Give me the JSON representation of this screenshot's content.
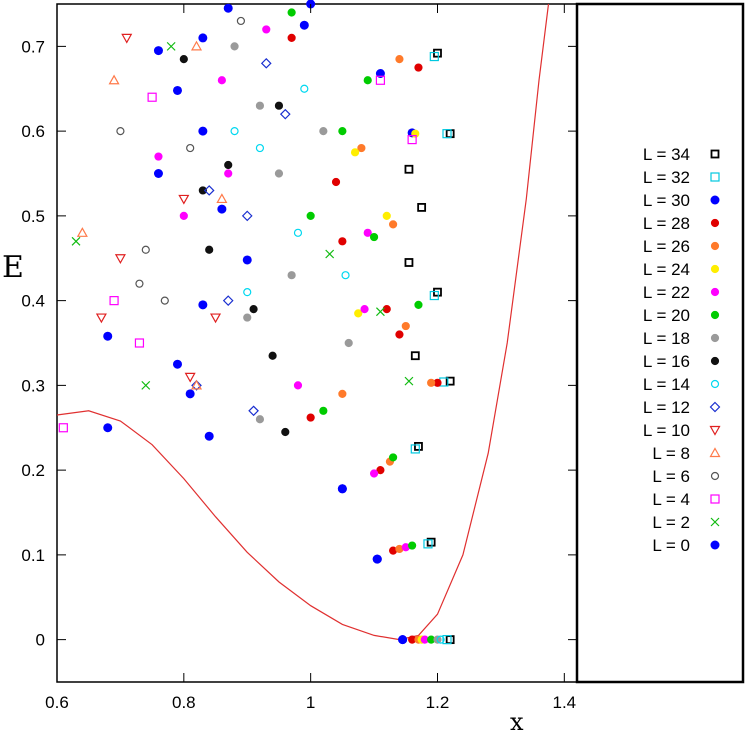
{
  "chart_data": {
    "type": "scatter",
    "xlabel": "x",
    "ylabel": "E",
    "xlim": [
      0.6,
      1.42
    ],
    "ylim": [
      -0.05,
      0.75
    ],
    "x_ticks": [
      {
        "v": 0.6,
        "label": "0.6"
      },
      {
        "v": 0.8,
        "label": "0.8"
      },
      {
        "v": 1.0,
        "label": "1"
      },
      {
        "v": 1.2,
        "label": "1.2"
      },
      {
        "v": 1.4,
        "label": "1.4"
      }
    ],
    "y_ticks": [
      {
        "v": 0,
        "label": "0"
      },
      {
        "v": 0.1,
        "label": "0.1"
      },
      {
        "v": 0.2,
        "label": "0.2"
      },
      {
        "v": 0.3,
        "label": "0.3"
      },
      {
        "v": 0.4,
        "label": "0.4"
      },
      {
        "v": 0.5,
        "label": "0.5"
      },
      {
        "v": 0.6,
        "label": "0.6"
      },
      {
        "v": 0.7,
        "label": "0.7"
      }
    ],
    "legend_position": "right",
    "series": [
      {
        "name": "L = 34",
        "marker": "square-dot",
        "color": "#000000",
        "points": [
          [
            1.22,
            0
          ],
          [
            1.19,
            0.115
          ],
          [
            1.17,
            0.228
          ],
          [
            1.165,
            0.335
          ],
          [
            1.22,
            0.305
          ],
          [
            1.2,
            0.41
          ],
          [
            1.155,
            0.445
          ],
          [
            1.175,
            0.51
          ],
          [
            1.155,
            0.555
          ],
          [
            1.22,
            0.597
          ],
          [
            1.2,
            0.692
          ]
        ]
      },
      {
        "name": "L = 32",
        "marker": "square",
        "color": "#00c8e0",
        "points": [
          [
            1.215,
            0
          ],
          [
            1.185,
            0.113
          ],
          [
            1.165,
            0.225
          ],
          [
            1.21,
            0.304
          ],
          [
            1.195,
            0.406
          ],
          [
            1.215,
            0.597
          ],
          [
            1.195,
            0.688
          ]
        ]
      },
      {
        "name": "L = 30",
        "marker": "circle-filled",
        "color": "#0000ff",
        "points": [
          [
            1.145,
            0
          ],
          [
            1.105,
            0.095
          ],
          [
            1.05,
            0.178
          ],
          [
            0.84,
            0.24
          ],
          [
            0.68,
            0.25
          ],
          [
            0.81,
            0.29
          ],
          [
            0.79,
            0.325
          ],
          [
            0.68,
            0.358
          ],
          [
            0.83,
            0.395
          ],
          [
            0.9,
            0.448
          ],
          [
            0.86,
            0.508
          ],
          [
            0.76,
            0.55
          ],
          [
            0.83,
            0.6
          ],
          [
            0.79,
            0.648
          ],
          [
            1.11,
            0.668
          ],
          [
            0.76,
            0.695
          ],
          [
            1.16,
            0.598
          ],
          [
            0.83,
            0.71
          ],
          [
            0.99,
            0.725
          ],
          [
            0.87,
            0.745
          ],
          [
            1.0,
            0.75
          ]
        ]
      },
      {
        "name": "L = 28",
        "marker": "circle-half",
        "color": "#e00000",
        "points": [
          [
            1.16,
            0
          ],
          [
            1.13,
            0.105
          ],
          [
            1.11,
            0.2
          ],
          [
            1.0,
            0.262
          ],
          [
            1.14,
            0.36
          ],
          [
            1.12,
            0.39
          ],
          [
            1.2,
            0.303
          ],
          [
            1.05,
            0.47
          ],
          [
            1.17,
            0.675
          ],
          [
            1.04,
            0.54
          ],
          [
            0.97,
            0.71
          ]
        ]
      },
      {
        "name": "L = 26",
        "marker": "circle-half",
        "color": "#ff7a2a",
        "points": [
          [
            1.17,
            0
          ],
          [
            1.14,
            0.107
          ],
          [
            1.125,
            0.21
          ],
          [
            1.05,
            0.29
          ],
          [
            1.15,
            0.37
          ],
          [
            1.19,
            0.303
          ],
          [
            1.13,
            0.49
          ],
          [
            1.08,
            0.58
          ],
          [
            1.14,
            0.685
          ]
        ]
      },
      {
        "name": "L = 24",
        "marker": "circle-half",
        "color": "#ffee00",
        "points": [
          [
            1.175,
            0
          ],
          [
            1.075,
            0.385
          ],
          [
            1.12,
            0.5
          ],
          [
            1.07,
            0.575
          ],
          [
            1.165,
            0.597
          ]
        ]
      },
      {
        "name": "L = 22",
        "marker": "circle-half",
        "color": "#ff00ff",
        "points": [
          [
            1.18,
            0
          ],
          [
            1.15,
            0.109
          ],
          [
            1.1,
            0.196
          ],
          [
            0.98,
            0.3
          ],
          [
            1.085,
            0.39
          ],
          [
            1.09,
            0.48
          ],
          [
            0.8,
            0.5
          ],
          [
            0.87,
            0.55
          ],
          [
            0.86,
            0.66
          ],
          [
            0.76,
            0.57
          ],
          [
            0.93,
            0.72
          ]
        ]
      },
      {
        "name": "L = 20",
        "marker": "circle-half",
        "color": "#00cc00",
        "points": [
          [
            1.19,
            0
          ],
          [
            1.16,
            0.111
          ],
          [
            1.13,
            0.215
          ],
          [
            1.02,
            0.27
          ],
          [
            1.17,
            0.395
          ],
          [
            1.1,
            0.475
          ],
          [
            1.0,
            0.5
          ],
          [
            1.05,
            0.6
          ],
          [
            1.09,
            0.66
          ],
          [
            0.97,
            0.74
          ]
        ]
      },
      {
        "name": "L = 18",
        "marker": "circle-half",
        "color": "#9a9a9a",
        "points": [
          [
            1.2,
            0
          ],
          [
            0.92,
            0.26
          ],
          [
            1.06,
            0.35
          ],
          [
            0.9,
            0.38
          ],
          [
            0.97,
            0.43
          ],
          [
            0.95,
            0.55
          ],
          [
            1.02,
            0.6
          ],
          [
            0.92,
            0.63
          ],
          [
            0.88,
            0.7
          ]
        ]
      },
      {
        "name": "L = 16",
        "marker": "circle-half",
        "color": "#111111",
        "points": [
          [
            0.96,
            0.245
          ],
          [
            0.94,
            0.335
          ],
          [
            0.91,
            0.39
          ],
          [
            0.84,
            0.46
          ],
          [
            0.83,
            0.53
          ],
          [
            0.87,
            0.56
          ],
          [
            0.95,
            0.63
          ],
          [
            0.8,
            0.685
          ]
        ]
      },
      {
        "name": "L = 14",
        "marker": "circle",
        "color": "#00d8f0",
        "points": [
          [
            1.205,
            0
          ],
          [
            1.055,
            0.43
          ],
          [
            0.98,
            0.48
          ],
          [
            0.9,
            0.41
          ],
          [
            0.92,
            0.58
          ],
          [
            0.99,
            0.65
          ],
          [
            0.88,
            0.6
          ]
        ]
      },
      {
        "name": "L = 12",
        "marker": "diamond",
        "color": "#1a2fd0",
        "points": [
          [
            0.91,
            0.27
          ],
          [
            0.82,
            0.3
          ],
          [
            0.87,
            0.4
          ],
          [
            0.84,
            0.53
          ],
          [
            0.9,
            0.5
          ],
          [
            0.96,
            0.62
          ],
          [
            0.93,
            0.68
          ]
        ]
      },
      {
        "name": "L = 10",
        "marker": "triangle-down",
        "color": "#e02020",
        "points": [
          [
            0.7,
            0.45
          ],
          [
            0.67,
            0.38
          ],
          [
            0.71,
            0.71
          ],
          [
            0.81,
            0.31
          ],
          [
            0.85,
            0.38
          ],
          [
            0.8,
            0.52
          ]
        ]
      },
      {
        "name": "L = 8",
        "marker": "triangle-up",
        "color": "#ff7a4a",
        "points": [
          [
            0.64,
            0.48
          ],
          [
            0.82,
            0.3
          ],
          [
            0.69,
            0.66
          ],
          [
            0.86,
            0.52
          ],
          [
            0.82,
            0.7
          ]
        ]
      },
      {
        "name": "L = 6",
        "marker": "circle",
        "color": "#555555",
        "points": [
          [
            0.74,
            0.46
          ],
          [
            0.77,
            0.4
          ],
          [
            0.7,
            0.6
          ],
          [
            0.73,
            0.42
          ],
          [
            0.81,
            0.58
          ],
          [
            0.89,
            0.73
          ]
        ]
      },
      {
        "name": "L = 4",
        "marker": "square",
        "color": "#ff00ff",
        "points": [
          [
            1.11,
            0.66
          ],
          [
            1.16,
            0.59
          ],
          [
            0.69,
            0.4
          ],
          [
            0.73,
            0.35
          ],
          [
            0.61,
            0.25
          ],
          [
            0.75,
            0.64
          ]
        ]
      },
      {
        "name": "L = 2",
        "marker": "cross",
        "color": "#11bb11",
        "points": [
          [
            1.03,
            0.455
          ],
          [
            1.11,
            0.387
          ],
          [
            1.155,
            0.305
          ],
          [
            0.63,
            0.47
          ],
          [
            0.74,
            0.3
          ],
          [
            0.78,
            0.7
          ]
        ]
      },
      {
        "name": "L = 0",
        "marker": "circle-filled",
        "color": "#0000ff",
        "points": [
          [
            1.145,
            0
          ],
          [
            1.105,
            0.095
          ],
          [
            1.05,
            0.178
          ]
        ]
      }
    ],
    "curves": [
      {
        "color": "#e03030",
        "points": [
          [
            0.6,
            0.265
          ],
          [
            0.65,
            0.27
          ],
          [
            0.7,
            0.258
          ],
          [
            0.75,
            0.23
          ],
          [
            0.8,
            0.19
          ],
          [
            0.85,
            0.145
          ],
          [
            0.9,
            0.103
          ],
          [
            0.95,
            0.068
          ],
          [
            1.0,
            0.04
          ],
          [
            1.05,
            0.018
          ],
          [
            1.1,
            0.005
          ],
          [
            1.14,
            0.0
          ],
          [
            1.17,
            0.005
          ],
          [
            1.2,
            0.03
          ],
          [
            1.24,
            0.1
          ],
          [
            1.28,
            0.22
          ],
          [
            1.31,
            0.35
          ],
          [
            1.34,
            0.52
          ],
          [
            1.36,
            0.66
          ],
          [
            1.375,
            0.75
          ]
        ]
      }
    ]
  }
}
